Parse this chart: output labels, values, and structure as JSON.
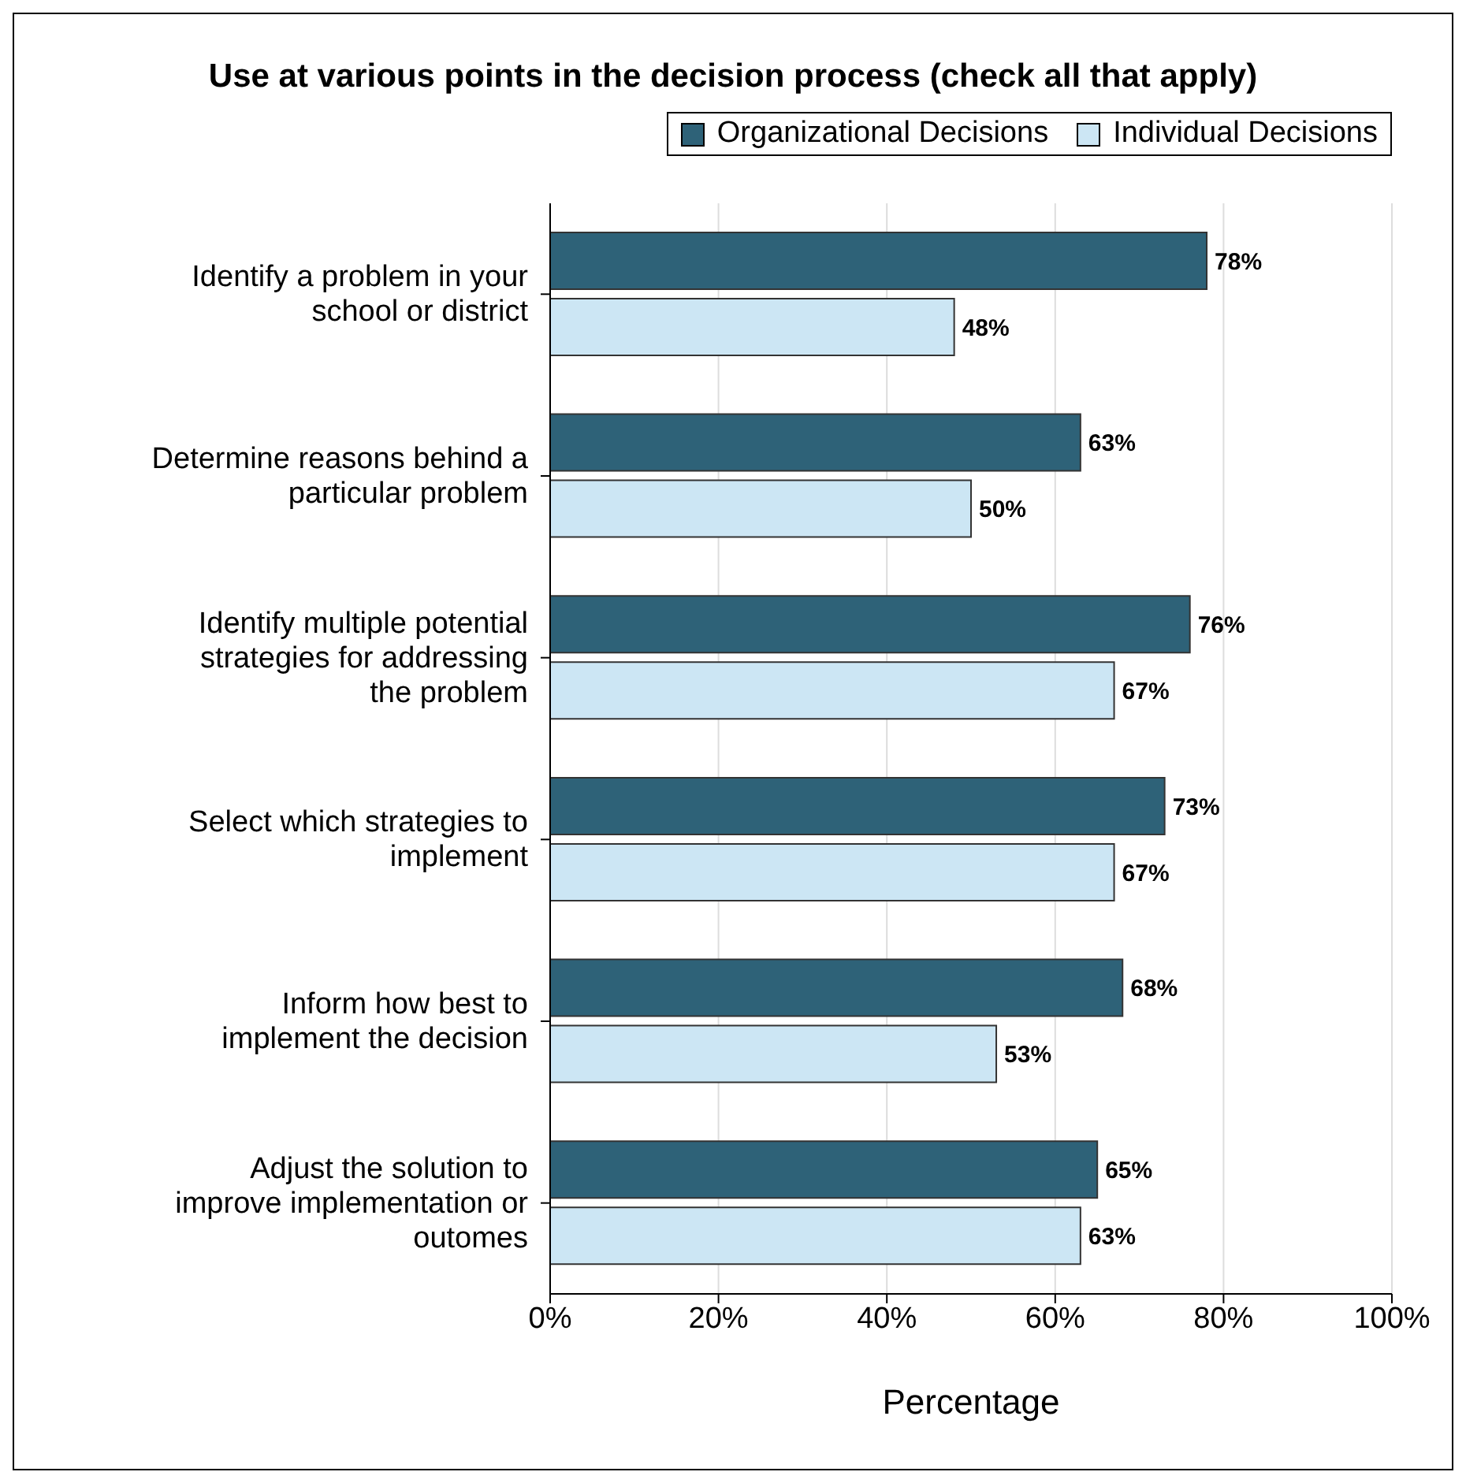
{
  "chart_data": {
    "type": "bar",
    "orientation": "horizontal",
    "title": "Use at various points in the decision process (check all that apply)",
    "xlabel": "Percentage",
    "categories": [
      "Identify a problem in your school or district",
      "Determine reasons behind a particular problem",
      "Identify multiple potential strategies for addressing the problem",
      "Select which strategies to implement",
      "Inform how best to implement the decision",
      "Adjust the solution to improve implementation or outomes"
    ],
    "series": [
      {
        "name": "Organizational Decisions",
        "color": "#2e6278",
        "values": [
          78,
          63,
          76,
          73,
          68,
          65
        ],
        "value_labels": [
          "78%",
          "63%",
          "76%",
          "73%",
          "68%",
          "65%"
        ]
      },
      {
        "name": "Individual Decisions",
        "color": "#cce6f4",
        "values": [
          48,
          50,
          67,
          67,
          53,
          63
        ],
        "value_labels": [
          "48%",
          "50%",
          "67%",
          "67%",
          "53%",
          "63%"
        ]
      }
    ],
    "xlim": [
      0,
      100
    ],
    "xticks": [
      {
        "value": 0,
        "label": "0%"
      },
      {
        "value": 20,
        "label": "20%"
      },
      {
        "value": 40,
        "label": "40%"
      },
      {
        "value": 60,
        "label": "60%"
      },
      {
        "value": 80,
        "label": "80%"
      },
      {
        "value": 100,
        "label": "100%"
      }
    ],
    "grid": "x",
    "legend": "top right"
  }
}
